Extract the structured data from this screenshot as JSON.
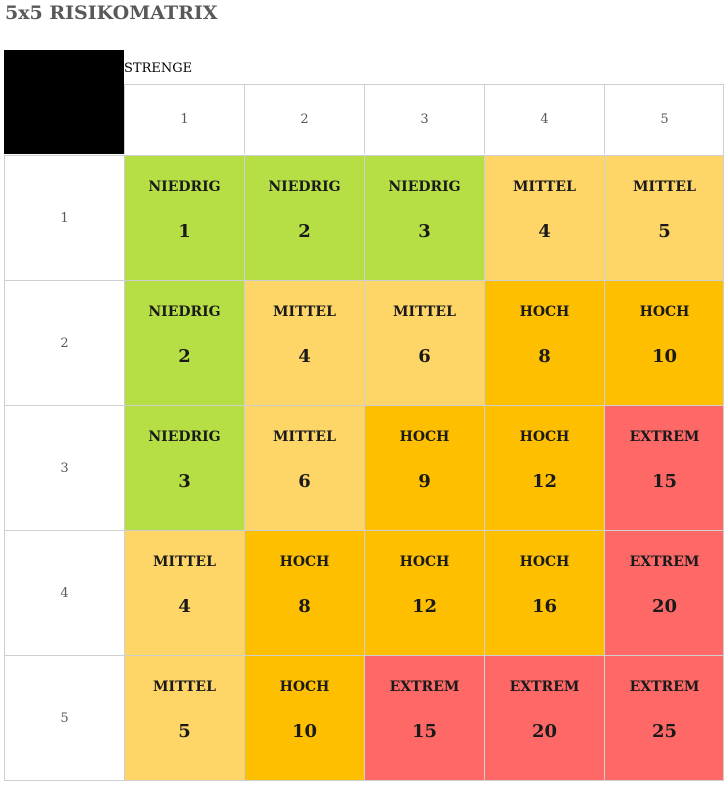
{
  "title": "5x5 RISIKOMATRIX",
  "axis_label": "STRENGE",
  "column_headers": [
    "1",
    "2",
    "3",
    "4",
    "5"
  ],
  "row_headers": [
    "1",
    "2",
    "3",
    "4",
    "5"
  ],
  "colors": {
    "NIEDRIG": "#b6df45",
    "MITTEL": "#fed567",
    "HOCH": "#fdbf00",
    "EXTREM": "#fe6866"
  },
  "rows": [
    [
      {
        "level": "NIEDRIG",
        "score": "1"
      },
      {
        "level": "NIEDRIG",
        "score": "2"
      },
      {
        "level": "NIEDRIG",
        "score": "3"
      },
      {
        "level": "MITTEL",
        "score": "4"
      },
      {
        "level": "MITTEL",
        "score": "5"
      }
    ],
    [
      {
        "level": "NIEDRIG",
        "score": "2"
      },
      {
        "level": "MITTEL",
        "score": "4"
      },
      {
        "level": "MITTEL",
        "score": "6"
      },
      {
        "level": "HOCH",
        "score": "8"
      },
      {
        "level": "HOCH",
        "score": "10"
      }
    ],
    [
      {
        "level": "NIEDRIG",
        "score": "3"
      },
      {
        "level": "MITTEL",
        "score": "6"
      },
      {
        "level": "HOCH",
        "score": "9"
      },
      {
        "level": "HOCH",
        "score": "12"
      },
      {
        "level": "EXTREM",
        "score": "15"
      }
    ],
    [
      {
        "level": "MITTEL",
        "score": "4"
      },
      {
        "level": "HOCH",
        "score": "8"
      },
      {
        "level": "HOCH",
        "score": "12"
      },
      {
        "level": "HOCH",
        "score": "16"
      },
      {
        "level": "EXTREM",
        "score": "20"
      }
    ],
    [
      {
        "level": "MITTEL",
        "score": "5"
      },
      {
        "level": "HOCH",
        "score": "10"
      },
      {
        "level": "EXTREM",
        "score": "15"
      },
      {
        "level": "EXTREM",
        "score": "20"
      },
      {
        "level": "EXTREM",
        "score": "25"
      }
    ]
  ]
}
